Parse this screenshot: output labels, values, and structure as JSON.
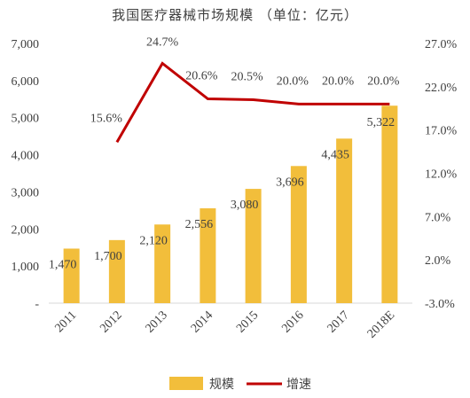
{
  "chart_data": {
    "type": "bar",
    "title": "我国医疗器械市场规模 （单位：亿元）",
    "categories": [
      "2011",
      "2012",
      "2013",
      "2014",
      "2015",
      "2016",
      "2017",
      "2018E"
    ],
    "series": [
      {
        "name": "规模",
        "kind": "bar",
        "axis": "left",
        "color": "#F2BE3B",
        "values": [
          1470,
          1700,
          2120,
          2556,
          3080,
          3696,
          4435,
          5322
        ],
        "labels": [
          "1,470",
          "1,700",
          "2,120",
          "2,556",
          "3,080",
          "3,696",
          "4,435",
          "5,322"
        ]
      },
      {
        "name": "增速",
        "kind": "line",
        "axis": "right",
        "color": "#C00000",
        "values": [
          null,
          15.6,
          24.7,
          20.6,
          20.5,
          20.0,
          20.0,
          20.0
        ],
        "labels": [
          "",
          "15.6%",
          "24.7%",
          "20.6%",
          "20.5%",
          "20.0%",
          "20.0%",
          "20.0%"
        ]
      }
    ],
    "y_left": {
      "ylim": [
        0,
        7000
      ],
      "ticks": [
        0,
        1000,
        2000,
        3000,
        4000,
        5000,
        6000,
        7000
      ],
      "tick_labels": [
        "-",
        "1,000",
        "2,000",
        "3,000",
        "4,000",
        "5,000",
        "6,000",
        "7,000"
      ]
    },
    "y_right": {
      "ylim": [
        -3,
        27
      ],
      "ticks": [
        -3,
        2,
        7,
        12,
        17,
        22,
        27
      ],
      "tick_labels": [
        "-3.0%",
        "2.0%",
        "7.0%",
        "12.0%",
        "17.0%",
        "22.0%",
        "27.0%"
      ]
    },
    "grid": false,
    "legend_position": "bottom-center"
  }
}
